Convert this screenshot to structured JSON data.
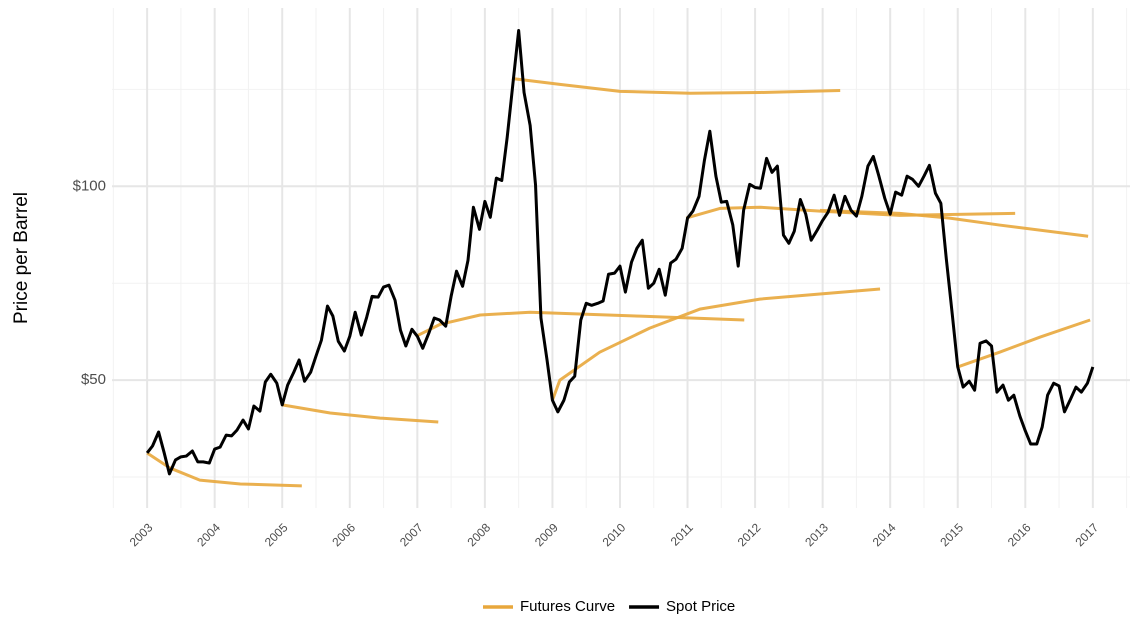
{
  "chart_data": {
    "type": "line",
    "y_label": "Price per Barrel",
    "xlim": [
      2002.48,
      2017.55
    ],
    "ylim": [
      17,
      146
    ],
    "xticks": [
      2003,
      2004,
      2005,
      2006,
      2007,
      2008,
      2009,
      2010,
      2011,
      2012,
      2013,
      2014,
      2015,
      2016,
      2017
    ],
    "x_minor_ticks": [
      2002.5,
      2003.5,
      2004.5,
      2005.5,
      2006.5,
      2007.5,
      2008.5,
      2009.5,
      2010.5,
      2011.5,
      2012.5,
      2013.5,
      2014.5,
      2015.5,
      2016.5,
      2017.5
    ],
    "yticks": [
      {
        "value": 50,
        "label": "$50"
      },
      {
        "value": 100,
        "label": "$100"
      }
    ],
    "y_minor_ticks": [
      25,
      75,
      125
    ],
    "grid": true,
    "legend": "bottom",
    "series": [
      {
        "name": "Futures Curve",
        "color": "#e8a73c",
        "curves": [
          {
            "x": [
              2003,
              2003.34,
              2003.78,
              2004.38,
              2005.29
            ],
            "values": [
              31.2,
              27.3,
              24.2,
              23.2,
              22.7
            ]
          },
          {
            "x": [
              2005.0,
              2005.71,
              2006.45,
              2007.31
            ],
            "values": [
              43.6,
              41.5,
              40.2,
              39.2
            ]
          },
          {
            "x": [
              2006.98,
              2007.34,
              2007.93,
              2008.67,
              2010.3,
              2011.84
            ],
            "values": [
              61.3,
              64.4,
              66.8,
              67.5,
              66.5,
              65.5
            ]
          },
          {
            "x": [
              2008.4,
              2009.11,
              2010.0,
              2011.04,
              2012.07,
              2013.26
            ],
            "values": [
              127.8,
              126.3,
              124.5,
              124,
              124.2,
              124.7
            ]
          },
          {
            "x": [
              2009.0,
              2009.11,
              2009.7,
              2010.44,
              2011.18,
              2012.07,
              2012.96,
              2013.85
            ],
            "values": [
              44.8,
              50,
              57.2,
              63.4,
              68.3,
              70.9,
              72.2,
              73.5
            ]
          },
          {
            "x": [
              2010.98,
              2011.48,
              2012.07,
              2012.96,
              2014.14,
              2015.85
            ],
            "values": [
              91.8,
              94.3,
              94.6,
              93.6,
              92.5,
              93
            ]
          },
          {
            "x": [
              2012.96,
              2014.14,
              2014.88,
              2015.62,
              2016.93
            ],
            "values": [
              93.8,
              93,
              91.8,
              90,
              87.1
            ]
          },
          {
            "x": [
              2015.0,
              2015.62,
              2016.22,
              2016.96
            ],
            "values": [
              53.4,
              57.2,
              61.1,
              65.5
            ]
          }
        ]
      },
      {
        "name": "Spot Price",
        "color": "#000000",
        "x": [
          2003.0,
          2003.08,
          2003.17,
          2003.25,
          2003.33,
          2003.42,
          2003.5,
          2003.58,
          2003.67,
          2003.75,
          2003.83,
          2003.92,
          2004.0,
          2004.08,
          2004.17,
          2004.25,
          2004.33,
          2004.42,
          2004.5,
          2004.58,
          2004.67,
          2004.75,
          2004.83,
          2004.92,
          2005.0,
          2005.08,
          2005.17,
          2005.25,
          2005.33,
          2005.42,
          2005.5,
          2005.58,
          2005.67,
          2005.75,
          2005.83,
          2005.92,
          2006.0,
          2006.08,
          2006.17,
          2006.25,
          2006.33,
          2006.42,
          2006.5,
          2006.58,
          2006.67,
          2006.75,
          2006.83,
          2006.92,
          2007.0,
          2007.08,
          2007.17,
          2007.25,
          2007.33,
          2007.42,
          2007.5,
          2007.58,
          2007.67,
          2007.75,
          2007.83,
          2007.92,
          2008.0,
          2008.08,
          2008.17,
          2008.25,
          2008.33,
          2008.42,
          2008.5,
          2008.58,
          2008.67,
          2008.75,
          2008.83,
          2008.92,
          2009.0,
          2009.08,
          2009.17,
          2009.25,
          2009.33,
          2009.42,
          2009.5,
          2009.58,
          2009.67,
          2009.75,
          2009.83,
          2009.92,
          2010.0,
          2010.08,
          2010.17,
          2010.25,
          2010.33,
          2010.42,
          2010.5,
          2010.58,
          2010.67,
          2010.75,
          2010.83,
          2010.92,
          2011.0,
          2011.08,
          2011.17,
          2011.25,
          2011.33,
          2011.42,
          2011.5,
          2011.58,
          2011.67,
          2011.75,
          2011.83,
          2011.92,
          2012.0,
          2012.08,
          2012.17,
          2012.25,
          2012.33,
          2012.42,
          2012.5,
          2012.58,
          2012.67,
          2012.75,
          2012.83,
          2012.92,
          2013.0,
          2013.08,
          2013.17,
          2013.25,
          2013.33,
          2013.42,
          2013.5,
          2013.58,
          2013.67,
          2013.75,
          2013.83,
          2013.92,
          2014.0,
          2014.08,
          2014.17,
          2014.25,
          2014.33,
          2014.42,
          2014.5,
          2014.58,
          2014.67,
          2014.75,
          2014.83,
          2014.92,
          2015.0,
          2015.08,
          2015.17,
          2015.25,
          2015.33,
          2015.42,
          2015.5,
          2015.58,
          2015.67,
          2015.75,
          2015.83,
          2015.92,
          2016.0,
          2016.08,
          2016.17,
          2016.25,
          2016.33,
          2016.42,
          2016.5,
          2016.58,
          2016.67,
          2016.75,
          2016.83,
          2016.92,
          2017.0
        ],
        "values": [
          31.2,
          33,
          36.6,
          31.4,
          25.8,
          29.4,
          30.2,
          30.4,
          31.7,
          28.9,
          28.9,
          28.6,
          32.2,
          32.7,
          35.8,
          35.6,
          37.1,
          39.7,
          37.4,
          43.3,
          42,
          49.5,
          51.5,
          49.2,
          43.6,
          48.7,
          52,
          55.2,
          49.7,
          52,
          56.2,
          60.3,
          69.1,
          66.5,
          60,
          57.5,
          61.3,
          67.5,
          61.6,
          66.2,
          71.6,
          71.4,
          74,
          74.5,
          70.6,
          62.9,
          58.8,
          63.1,
          61.3,
          58.2,
          62.1,
          66,
          65.5,
          63.9,
          71.6,
          78.1,
          74.2,
          80.9,
          94.6,
          88.9,
          96.1,
          92,
          102.1,
          101.5,
          112.6,
          127.3,
          140.2,
          124.2,
          115.7,
          100.3,
          66,
          55.2,
          44.8,
          41.8,
          44.8,
          49.5,
          51,
          65.5,
          69.8,
          69.3,
          69.8,
          70.4,
          77.3,
          77.6,
          79.4,
          72.7,
          80.4,
          84,
          86.1,
          73.7,
          75,
          78.6,
          71.9,
          80.2,
          81.2,
          84,
          91.8,
          93.6,
          97.4,
          106.7,
          114.2,
          102.6,
          95.9,
          96.1,
          90,
          79.4,
          93.8,
          100.5,
          99.7,
          99.5,
          107.2,
          103.6,
          105.2,
          87.4,
          85.3,
          88.4,
          96.6,
          92.8,
          86.1,
          88.7,
          91.2,
          93.3,
          97.7,
          92.5,
          97.4,
          93.8,
          92.3,
          97.4,
          105.2,
          107.7,
          102.8,
          96.9,
          92.8,
          98.5,
          97.7,
          102.6,
          101.8,
          100,
          102.6,
          105.4,
          98.2,
          95.6,
          81.4,
          66.8,
          53.4,
          48.2,
          49.7,
          47.4,
          59.5,
          60.1,
          58.8,
          46.9,
          48.7,
          44.8,
          46.1,
          40.7,
          36.9,
          33.5,
          33.5,
          37.9,
          46.1,
          49.2,
          48.5,
          41.8,
          45.1,
          48.2,
          46.9,
          49.2,
          53.4
        ]
      }
    ]
  }
}
